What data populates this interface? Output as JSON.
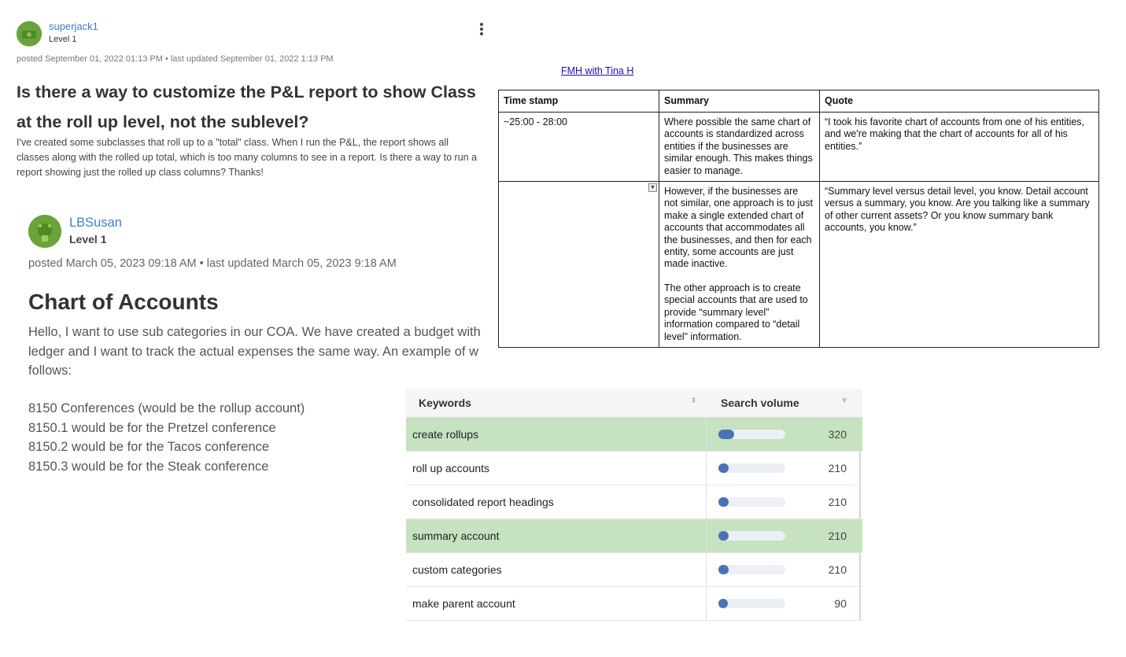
{
  "post1": {
    "username": "superjack1",
    "level": "Level 1",
    "meta": "posted September 01, 2022 01:13 PM • last updated September 01, 2022 1:13 PM",
    "title": "Is there a way to customize the P&L report to show Class at the roll up level, not the sublevel?",
    "body": "I've created some subclasses that roll up to a \"total\" class. When I run the P&L, the report shows all classes along with the rolled up total, which is too many columns to see in a report. Is there a way to run a report showing just the rolled up class columns? Thanks!"
  },
  "post2": {
    "username": "LBSusan",
    "level": "Level 1",
    "meta": "posted March 05, 2023 09:18 AM • last updated March 05, 2023 9:18 AM",
    "title": "Chart of Accounts",
    "body_lines": [
      "Hello, I want to use sub categories in our COA. We have created a budget with",
      "ledger and I want to track the actual expenses the same way.  An example of w",
      "follows:"
    ],
    "examples": [
      "8150 Conferences (would be the rollup account)",
      "8150.1 would be for the Pretzel conference",
      "8150.2 would be for the Tacos conference",
      "8150.3 would be for the Steak conference"
    ]
  },
  "transcript": {
    "link": "FMH with Tina H",
    "headers": [
      "Time stamp",
      "Summary",
      "Quote"
    ],
    "rows": [
      {
        "timestamp": "~25:00 - 28:00",
        "summary": [
          "Where possible the same chart of accounts is standardized across entities if the businesses are similar enough. This makes things easier to manage."
        ],
        "quote": "“I took his favorite chart of accounts from one of his entities, and we're making that the chart of accounts for all of his entities.”"
      },
      {
        "timestamp": "",
        "summary": [
          "However, if the businesses are not similar, one approach is to just make a single extended chart of accounts that accommodates all the businesses, and then for each entity, some accounts are just made inactive.",
          "The other approach is to create special accounts that are used to provide “summary level” information compared to “detail level” information."
        ],
        "quote": "“Summary level versus detail level, you know. Detail account versus a summary, you know. Are you talking like a summary of other current assets? Or you know summary bank accounts, you know.”"
      }
    ]
  },
  "keywords": {
    "headers": {
      "keyword": "Keywords",
      "volume": "Search volume"
    },
    "max_volume": 320,
    "rows": [
      {
        "keyword": "create rollups",
        "volume": 320,
        "highlight": true
      },
      {
        "keyword": "roll up accounts",
        "volume": 210,
        "highlight": false
      },
      {
        "keyword": "consolidated report headings",
        "volume": 210,
        "highlight": false
      },
      {
        "keyword": "summary account",
        "volume": 210,
        "highlight": true
      },
      {
        "keyword": "custom categories",
        "volume": 210,
        "highlight": false
      },
      {
        "keyword": "make parent account",
        "volume": 90,
        "highlight": false
      }
    ],
    "colors": {
      "highlight": "#c6e2c0",
      "bar": "#4a72b8"
    }
  }
}
